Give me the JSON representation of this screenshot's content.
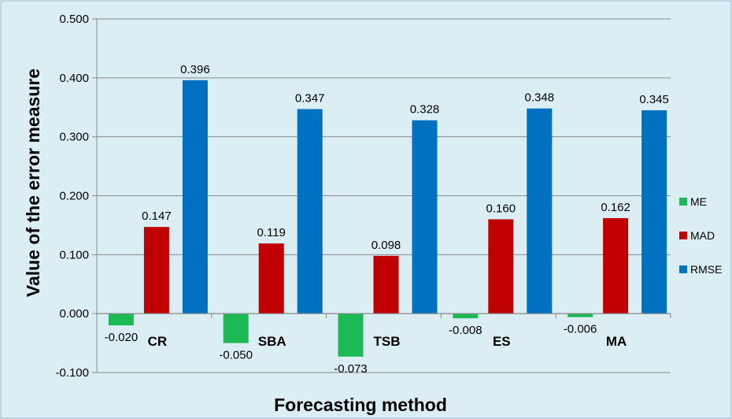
{
  "chart_data": {
    "type": "bar",
    "categories": [
      "CR",
      "SBA",
      "TSB",
      "ES",
      "MA"
    ],
    "series": [
      {
        "name": "ME",
        "color": "#1db954",
        "values": [
          -0.02,
          -0.05,
          -0.073,
          -0.008,
          -0.006
        ]
      },
      {
        "name": "MAD",
        "color": "#c00000",
        "values": [
          0.147,
          0.119,
          0.098,
          0.16,
          0.162
        ]
      },
      {
        "name": "RMSE",
        "color": "#0070c0",
        "values": [
          0.396,
          0.347,
          0.328,
          0.348,
          0.345
        ]
      }
    ],
    "data_labels": [
      [
        "-0.020",
        "-0.050",
        "-0.073",
        "-0.008",
        "-0.006"
      ],
      [
        "0.147",
        "0.119",
        "0.098",
        "0.160",
        "0.162"
      ],
      [
        "0.396",
        "0.347",
        "0.328",
        "0.348",
        "0.345"
      ]
    ],
    "xlabel": "Forecasting method",
    "ylabel": "Value of the error measure",
    "ylim": [
      -0.1,
      0.5
    ],
    "yticks": [
      -0.1,
      0.0,
      0.1,
      0.2,
      0.3,
      0.4,
      0.5
    ],
    "ytick_labels": [
      "-0.100",
      "0.000",
      "0.100",
      "0.200",
      "0.300",
      "0.400",
      "0.500"
    ],
    "grid": true,
    "legend_position": "right",
    "background_color": "#dbeef4"
  }
}
